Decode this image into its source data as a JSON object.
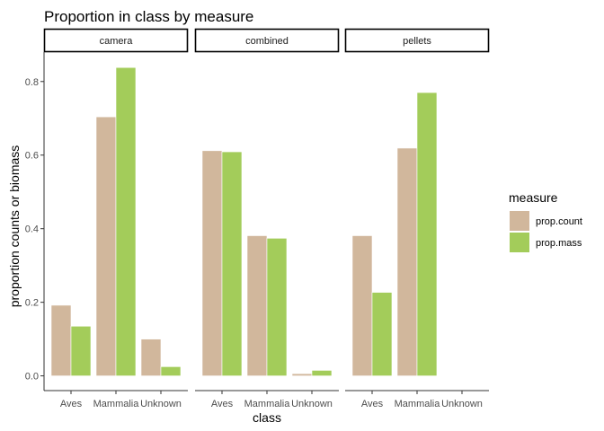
{
  "chart_data": {
    "type": "bar",
    "title": "Proportion in class by measure",
    "xlabel": "class",
    "ylabel": "proportion counts or biomass",
    "ylim": [
      -0.04,
      0.88
    ],
    "yticks": [
      "0.0",
      "0.2",
      "0.4",
      "0.6",
      "0.8"
    ],
    "ytick_values": [
      0.0,
      0.2,
      0.4,
      0.6,
      0.8
    ],
    "categories": [
      "Aves",
      "Mammalia",
      "Unknown"
    ],
    "legend": {
      "title": "measure",
      "placement": "right",
      "entries": [
        "prop.count",
        "prop.mass"
      ]
    },
    "colors": {
      "prop.count": "#d1b79c",
      "prop.mass": "#a3cc5a"
    },
    "facets": [
      {
        "label": "camera",
        "series": [
          {
            "name": "prop.count",
            "values": [
              0.192,
              0.704,
              0.1
            ]
          },
          {
            "name": "prop.mass",
            "values": [
              0.135,
              0.838,
              0.025
            ]
          }
        ]
      },
      {
        "label": "combined",
        "series": [
          {
            "name": "prop.count",
            "values": [
              0.612,
              0.381,
              0.006
            ]
          },
          {
            "name": "prop.mass",
            "values": [
              0.609,
              0.374,
              0.015
            ]
          }
        ]
      },
      {
        "label": "pellets",
        "series": [
          {
            "name": "prop.count",
            "values": [
              0.381,
              0.619,
              null
            ]
          },
          {
            "name": "prop.mass",
            "values": [
              0.227,
              0.77,
              null
            ]
          }
        ]
      }
    ]
  }
}
